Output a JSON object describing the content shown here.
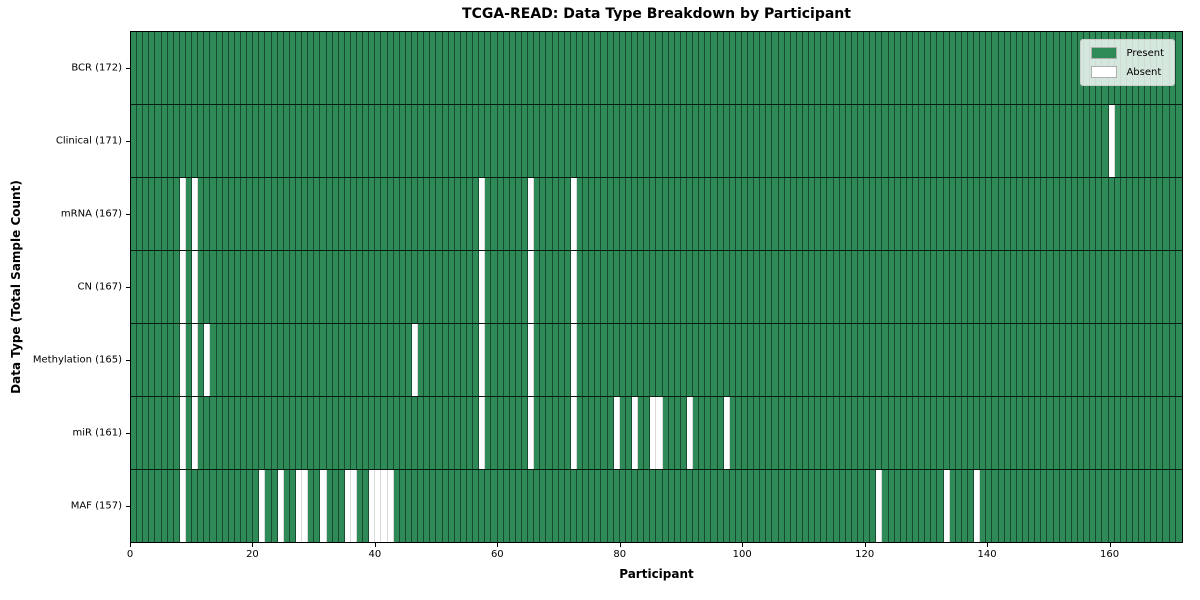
{
  "chart_data": {
    "type": "heatmap",
    "title": "TCGA-READ: Data Type Breakdown by Participant",
    "xlabel": "Participant",
    "ylabel": "Data Type (Total Sample Count)",
    "n_participants": 172,
    "x_ticks": [
      0,
      20,
      40,
      60,
      80,
      100,
      120,
      140,
      160
    ],
    "present_color": "#2e8b57",
    "absent_color": "#ffffff",
    "legend": [
      {
        "label": "Present",
        "color": "#2e8b57"
      },
      {
        "label": "Absent",
        "color": "#ffffff"
      }
    ],
    "rows": [
      {
        "name": "bcr",
        "label": "BCR (172)",
        "count": 172,
        "absent": []
      },
      {
        "name": "clinical",
        "label": "Clinical (171)",
        "count": 171,
        "absent": [
          160
        ]
      },
      {
        "name": "mrna",
        "label": "mRNA (167)",
        "count": 167,
        "absent": [
          8,
          10,
          57,
          65,
          72
        ]
      },
      {
        "name": "cn",
        "label": "CN (167)",
        "count": 167,
        "absent": [
          8,
          10,
          57,
          65,
          72
        ]
      },
      {
        "name": "methylation",
        "label": "Methylation (165)",
        "count": 165,
        "absent": [
          8,
          10,
          12,
          46,
          57,
          65,
          72
        ]
      },
      {
        "name": "mir",
        "label": "miR (161)",
        "count": 161,
        "absent": [
          8,
          10,
          57,
          65,
          72,
          79,
          82,
          85,
          86,
          91,
          97
        ]
      },
      {
        "name": "maf",
        "label": "MAF (157)",
        "count": 157,
        "absent": [
          8,
          21,
          24,
          27,
          28,
          31,
          35,
          36,
          39,
          40,
          41,
          42,
          122,
          133,
          138
        ]
      }
    ]
  }
}
